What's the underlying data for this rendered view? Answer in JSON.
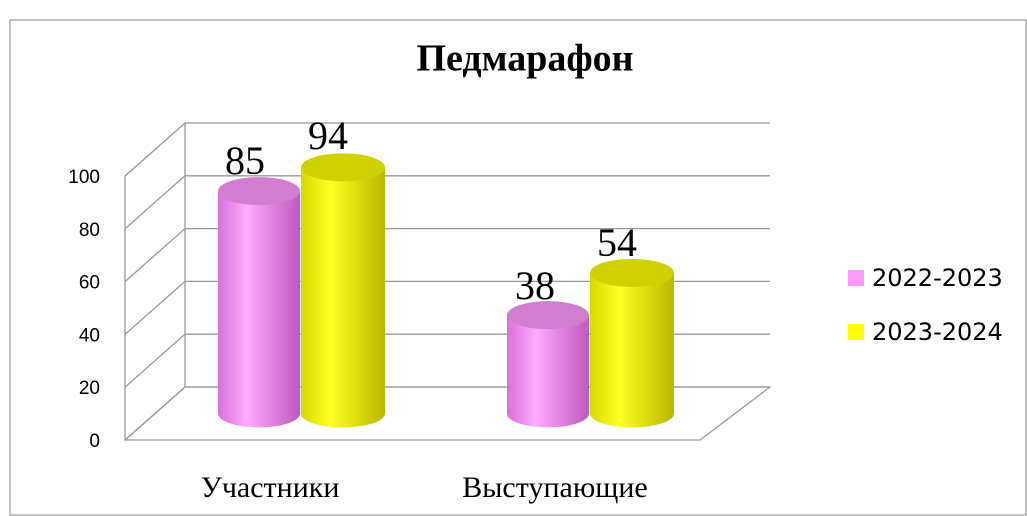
{
  "chart_data": {
    "type": "bar",
    "title": "Педмарафон",
    "categories": [
      "Участники",
      "Выступающие"
    ],
    "series": [
      {
        "name": "2022-2023",
        "color": "#ff99ff",
        "values": [
          85,
          38
        ]
      },
      {
        "name": "2023-2024",
        "color": "#ffff00",
        "values": [
          94,
          54
        ]
      }
    ],
    "ylim": [
      0,
      100
    ],
    "yticks": [
      0,
      20,
      40,
      60,
      80,
      100
    ],
    "grid": true,
    "legend": "right"
  }
}
